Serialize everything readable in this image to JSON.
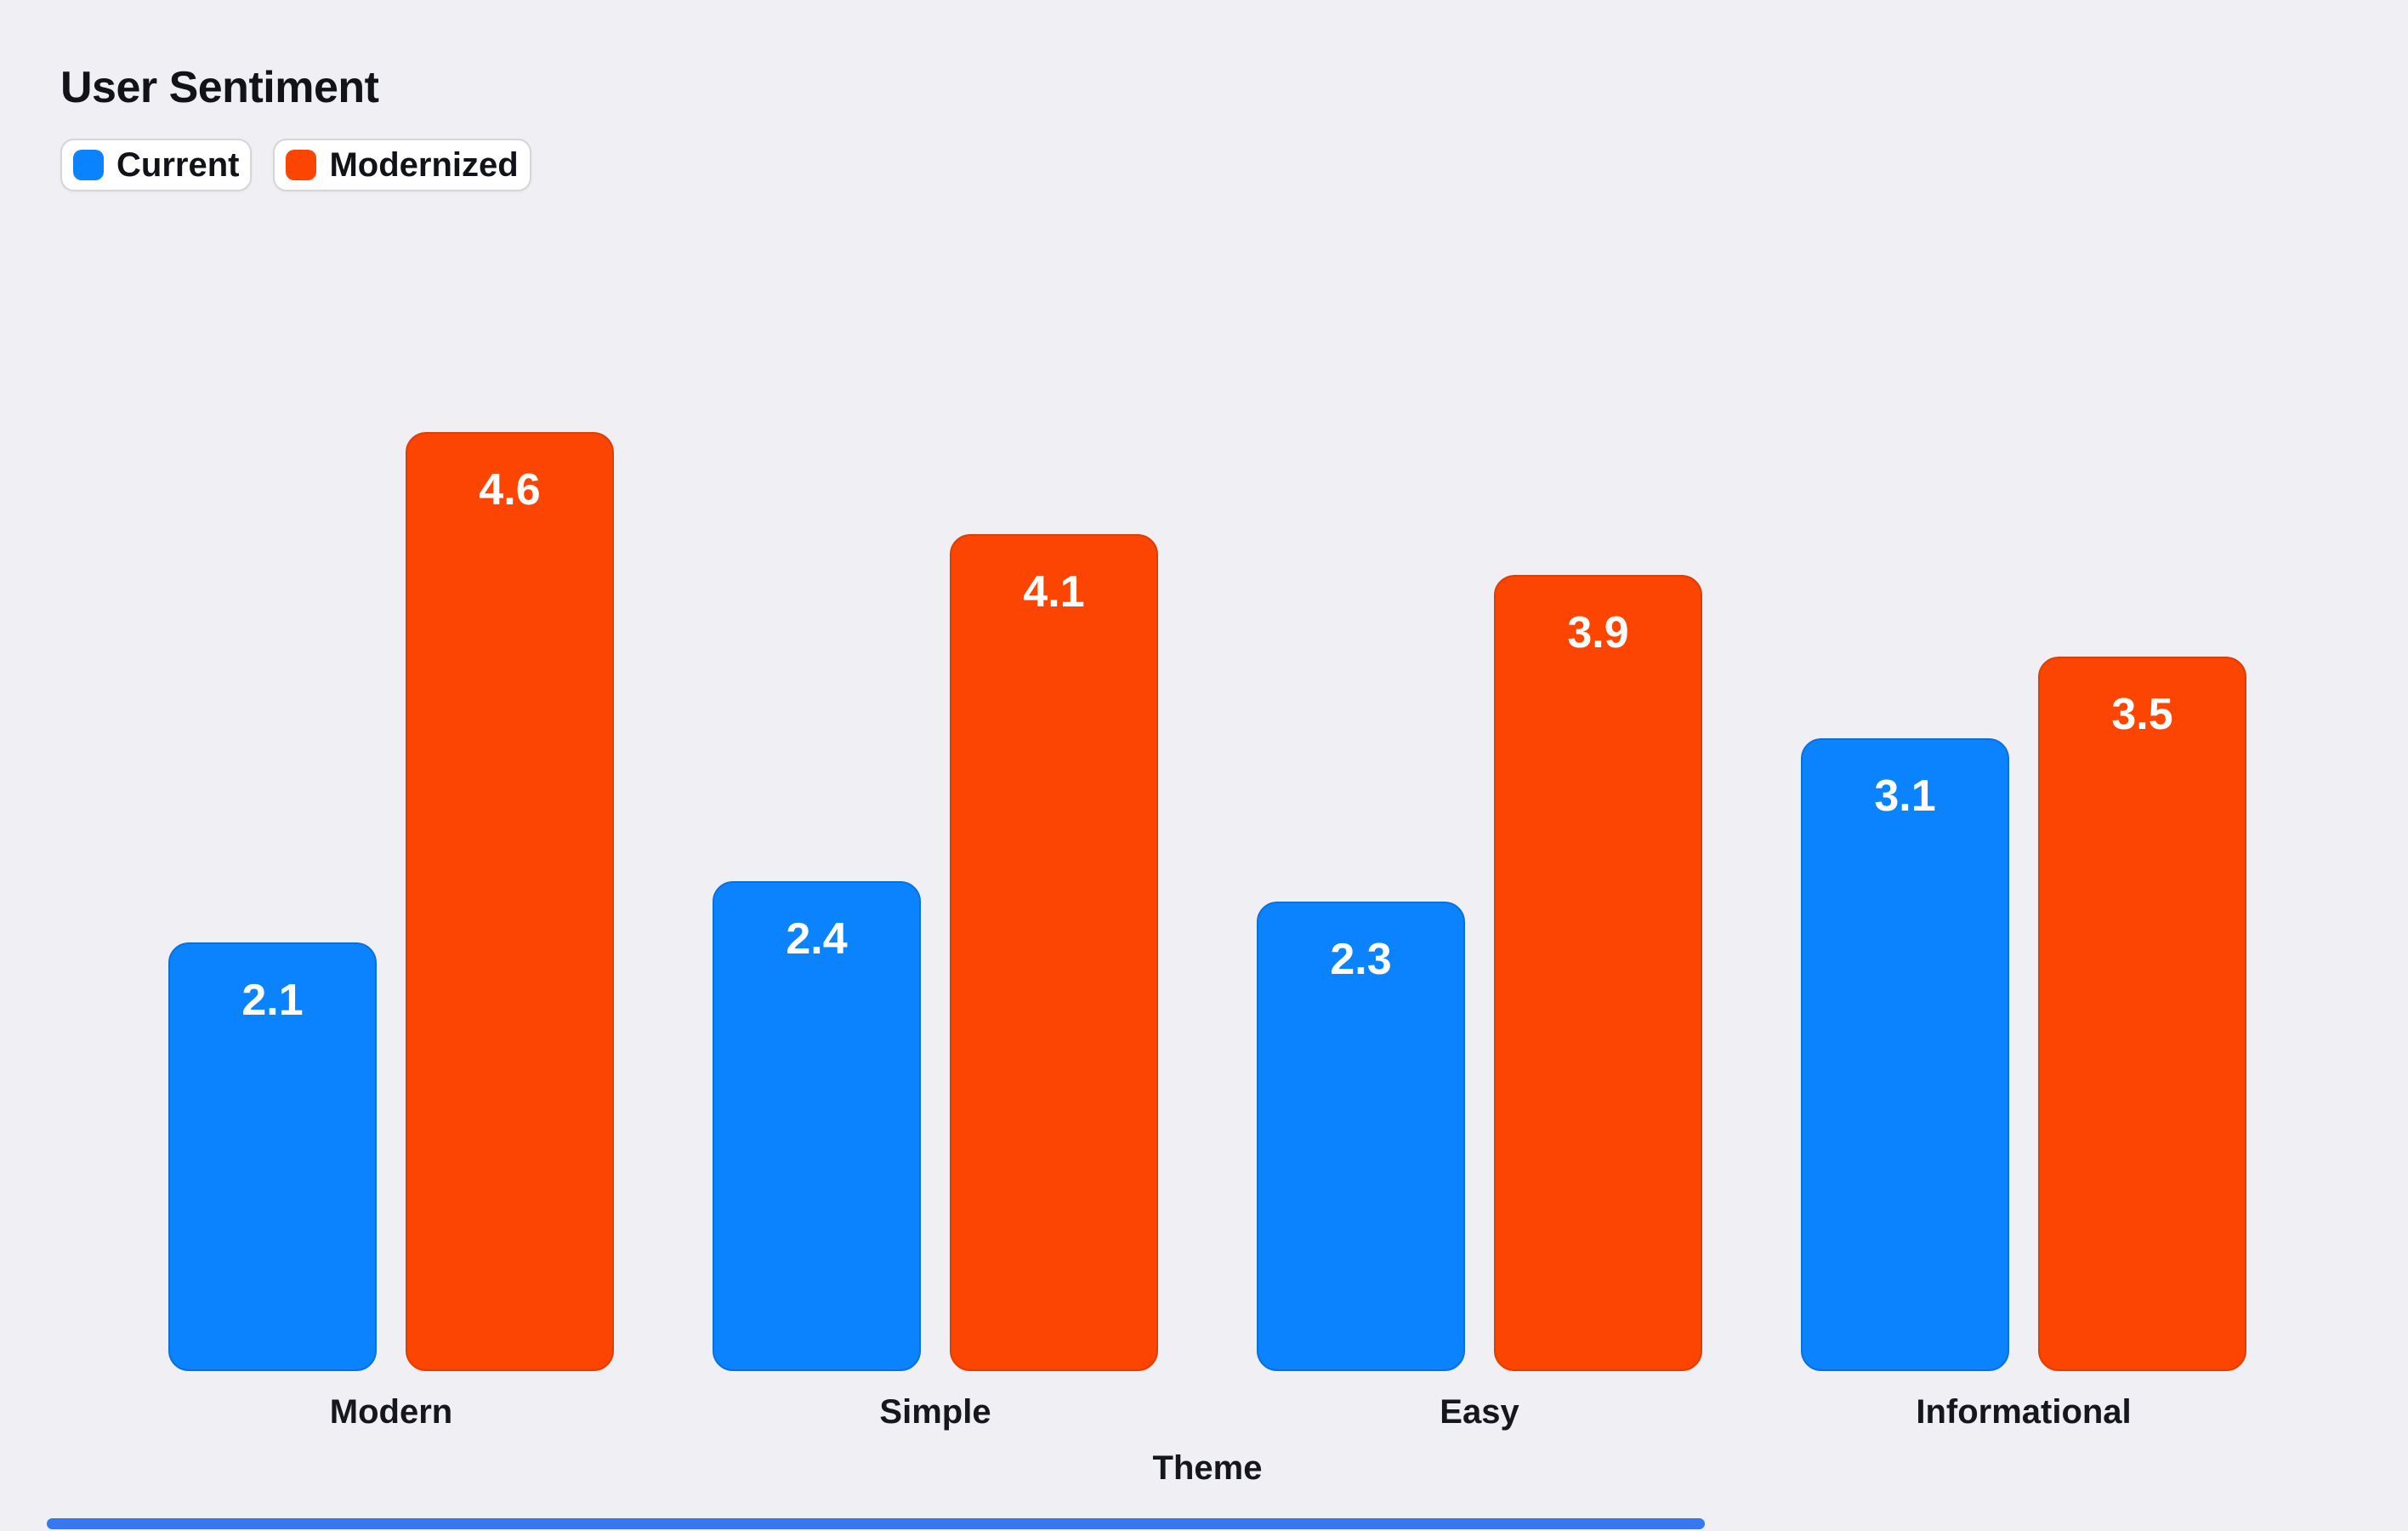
{
  "title": "User Sentiment",
  "colors": {
    "background": "#f0f0f4",
    "text": "#121318",
    "value_label": "#ffffff",
    "legend_pill_background": "#ffffff",
    "legend_pill_border": "#d6d6da",
    "scrollbar": "#3579f0"
  },
  "legend": {
    "items": [
      {
        "label": "Current",
        "color": "#0c83fe"
      },
      {
        "label": "Modernized",
        "color": "#fc4502"
      }
    ]
  },
  "x_axis_title": "Theme",
  "chart_data": {
    "type": "bar",
    "title": "User Sentiment",
    "categories": [
      "Modern",
      "Simple",
      "Easy",
      "Informational"
    ],
    "series": [
      {
        "name": "Current",
        "color": "#0c83fe",
        "border_color": "#0a70dd",
        "values": [
          2.1,
          2.4,
          2.3,
          3.1
        ]
      },
      {
        "name": "Modernized",
        "color": "#fc4502",
        "border_color": "#e03e03",
        "values": [
          4.6,
          4.1,
          3.9,
          3.5
        ]
      }
    ],
    "xlabel": "Theme",
    "ylabel": "",
    "ylim": [
      0,
      5
    ],
    "grid": false,
    "axes_visible": false,
    "legend_position": "top-left",
    "value_labels": "inside-top"
  },
  "scrollbar": {
    "color": "#3579f0"
  }
}
